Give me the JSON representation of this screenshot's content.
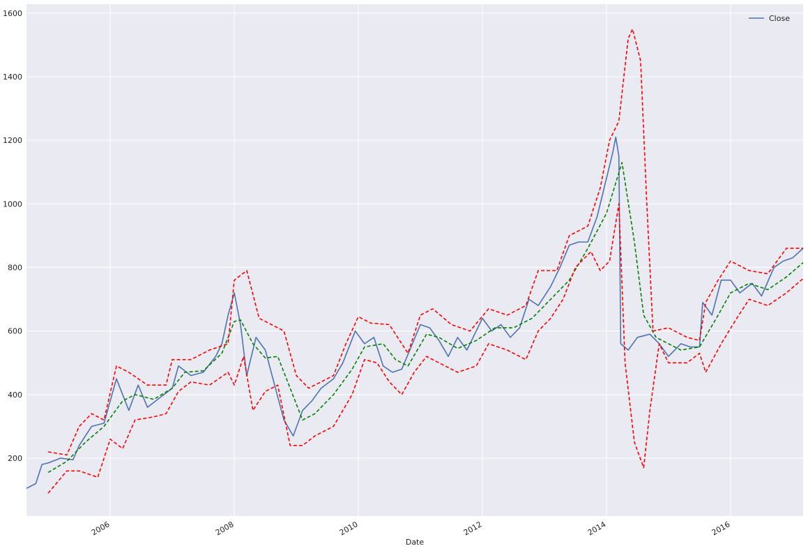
{
  "chart_data": {
    "type": "line",
    "xlabel": "Date",
    "xlim": [
      2004.65,
      2017.17
    ],
    "xticks": [
      2006,
      2008,
      2010,
      2012,
      2014,
      2016
    ],
    "ylim": [
      18,
      1628
    ],
    "yticks": [
      200,
      400,
      600,
      800,
      1000,
      1200,
      1400,
      1600
    ],
    "grid": true,
    "legend": "upper right",
    "series": [
      {
        "name": "Close",
        "color": "#4c72b0",
        "style": "solid",
        "x": [
          2004.65,
          2004.8,
          2004.9,
          2005.0,
          2005.2,
          2005.4,
          2005.5,
          2005.7,
          2005.9,
          2006.0,
          2006.1,
          2006.2,
          2006.3,
          2006.45,
          2006.6,
          2006.8,
          2007.0,
          2007.1,
          2007.3,
          2007.5,
          2007.7,
          2007.8,
          2007.9,
          2008.0,
          2008.1,
          2008.2,
          2008.35,
          2008.5,
          2008.65,
          2008.8,
          2008.95,
          2009.1,
          2009.25,
          2009.4,
          2009.6,
          2009.75,
          2009.95,
          2010.1,
          2010.25,
          2010.4,
          2010.55,
          2010.7,
          2010.85,
          2011.0,
          2011.15,
          2011.3,
          2011.45,
          2011.6,
          2011.75,
          2011.9,
          2012.0,
          2012.15,
          2012.3,
          2012.45,
          2012.6,
          2012.75,
          2012.9,
          2013.1,
          2013.25,
          2013.4,
          2013.55,
          2013.7,
          2013.85,
          2014.0,
          2014.1,
          2014.15,
          2014.2,
          2014.23,
          2014.35,
          2014.5,
          2014.7,
          2014.85,
          2015.0,
          2015.2,
          2015.35,
          2015.5,
          2015.55,
          2015.7,
          2015.85,
          2016.0,
          2016.15,
          2016.35,
          2016.5,
          2016.7,
          2016.85,
          2017.0,
          2017.17
        ],
        "values": [
          105,
          120,
          180,
          185,
          200,
          195,
          240,
          300,
          310,
          380,
          450,
          400,
          350,
          430,
          360,
          390,
          420,
          490,
          460,
          470,
          520,
          560,
          650,
          720,
          620,
          460,
          580,
          540,
          430,
          320,
          270,
          350,
          380,
          420,
          450,
          500,
          600,
          560,
          580,
          490,
          470,
          480,
          550,
          620,
          610,
          570,
          520,
          580,
          540,
          600,
          640,
          600,
          620,
          580,
          610,
          700,
          680,
          740,
          800,
          870,
          880,
          880,
          960,
          1080,
          1160,
          1210,
          1150,
          560,
          540,
          580,
          590,
          560,
          520,
          560,
          550,
          550,
          690,
          650,
          760,
          760,
          720,
          750,
          710,
          800,
          820,
          830,
          860
        ]
      },
      {
        "color": "green",
        "style": "dashed",
        "x": [
          2005.0,
          2005.3,
          2005.6,
          2005.9,
          2006.2,
          2006.4,
          2006.7,
          2007.0,
          2007.2,
          2007.5,
          2007.8,
          2008.0,
          2008.1,
          2008.3,
          2008.5,
          2008.7,
          2008.9,
          2009.1,
          2009.3,
          2009.6,
          2009.9,
          2010.1,
          2010.4,
          2010.6,
          2010.8,
          2011.1,
          2011.3,
          2011.6,
          2011.9,
          2012.2,
          2012.5,
          2012.8,
          2013.1,
          2013.4,
          2013.7,
          2014.0,
          2014.25,
          2014.45,
          2014.6,
          2014.8,
          2015.0,
          2015.2,
          2015.5,
          2015.8,
          2016.0,
          2016.3,
          2016.6,
          2016.9,
          2017.17
        ],
        "values": [
          155,
          190,
          250,
          300,
          380,
          400,
          385,
          420,
          470,
          475,
          530,
          630,
          635,
          560,
          515,
          520,
          420,
          320,
          340,
          400,
          480,
          550,
          560,
          510,
          490,
          590,
          580,
          545,
          570,
          610,
          610,
          640,
          700,
          760,
          860,
          970,
          1130,
          880,
          650,
          580,
          560,
          540,
          550,
          650,
          720,
          750,
          730,
          770,
          815
        ]
      },
      {
        "color": "red",
        "style": "dashed",
        "x": [
          2005.0,
          2005.3,
          2005.5,
          2005.7,
          2005.9,
          2006.1,
          2006.3,
          2006.6,
          2006.9,
          2007.0,
          2007.3,
          2007.6,
          2007.9,
          2008.0,
          2008.2,
          2008.4,
          2008.6,
          2008.8,
          2009.0,
          2009.2,
          2009.4,
          2009.6,
          2009.8,
          2010.0,
          2010.2,
          2010.5,
          2010.8,
          2011.0,
          2011.2,
          2011.5,
          2011.8,
          2012.1,
          2012.4,
          2012.7,
          2012.9,
          2013.2,
          2013.4,
          2013.7,
          2013.9,
          2014.05,
          2014.2,
          2014.35,
          2014.42,
          2014.55,
          2014.65,
          2014.75,
          2015.0,
          2015.3,
          2015.5,
          2015.6,
          2015.8,
          2016.0,
          2016.3,
          2016.6,
          2016.9,
          2017.17
        ],
        "values": [
          220,
          210,
          300,
          340,
          320,
          490,
          470,
          430,
          430,
          510,
          510,
          540,
          560,
          760,
          790,
          640,
          620,
          600,
          460,
          420,
          440,
          460,
          560,
          645,
          625,
          620,
          530,
          650,
          670,
          620,
          600,
          670,
          650,
          680,
          790,
          790,
          900,
          930,
          1050,
          1200,
          1260,
          1520,
          1550,
          1450,
          1000,
          600,
          610,
          580,
          570,
          690,
          760,
          820,
          790,
          780,
          860,
          860
        ]
      },
      {
        "color": "red",
        "style": "dashed",
        "x": [
          2005.0,
          2005.3,
          2005.5,
          2005.8,
          2006.0,
          2006.2,
          2006.4,
          2006.7,
          2006.9,
          2007.1,
          2007.3,
          2007.6,
          2007.9,
          2008.0,
          2008.15,
          2008.3,
          2008.5,
          2008.7,
          2008.9,
          2009.1,
          2009.3,
          2009.6,
          2009.9,
          2010.1,
          2010.3,
          2010.5,
          2010.7,
          2010.9,
          2011.1,
          2011.3,
          2011.6,
          2011.9,
          2012.1,
          2012.4,
          2012.7,
          2012.9,
          2013.1,
          2013.3,
          2013.5,
          2013.75,
          2013.9,
          2014.05,
          2014.2,
          2014.3,
          2014.45,
          2014.6,
          2014.7,
          2014.85,
          2015.0,
          2015.3,
          2015.5,
          2015.6,
          2015.85,
          2016.1,
          2016.3,
          2016.6,
          2016.9,
          2017.17
        ],
        "values": [
          90,
          160,
          160,
          140,
          260,
          230,
          320,
          330,
          340,
          410,
          440,
          430,
          470,
          430,
          520,
          350,
          410,
          430,
          240,
          240,
          270,
          300,
          400,
          510,
          500,
          440,
          400,
          470,
          520,
          500,
          470,
          490,
          560,
          540,
          510,
          600,
          640,
          700,
          800,
          850,
          790,
          820,
          1000,
          500,
          250,
          170,
          350,
          560,
          500,
          500,
          530,
          470,
          560,
          640,
          700,
          680,
          720,
          765
        ]
      }
    ]
  }
}
